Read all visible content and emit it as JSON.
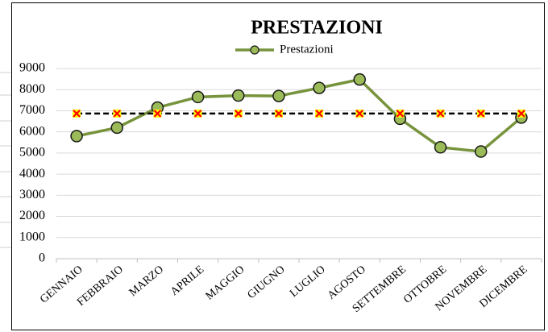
{
  "chart_data": {
    "type": "line",
    "title": "PRESTAZIONI",
    "categories": [
      "GENNAIO",
      "FEBBRAIO",
      "MARZO",
      "APRILE",
      "MAGGIO",
      "GIUGNO",
      "LUGLIO",
      "AGOSTO",
      "SETTEMBRE",
      "OTTOBRE",
      "NOVEMBRE",
      "DICEMBRE"
    ],
    "series": [
      {
        "name": "Prestazioni",
        "color": "#77933c",
        "marker_color": "#9bbb59",
        "marker": "circle",
        "values": [
          5800,
          6200,
          7150,
          7650,
          7720,
          7700,
          8080,
          8480,
          6620,
          5270,
          5070,
          6680
        ]
      },
      {
        "color": "#000000",
        "marker_color": "#ffff00",
        "marker": "x",
        "dashed": true,
        "values": [
          6870,
          6870,
          6870,
          6870,
          6870,
          6870,
          6870,
          6870,
          6870,
          6870,
          6870,
          6870
        ]
      }
    ],
    "ylim": [
      0,
      9000
    ],
    "yticks": [
      0,
      1000,
      2000,
      3000,
      4000,
      5000,
      6000,
      7000,
      8000,
      9000
    ],
    "grid": true,
    "legend": "top"
  }
}
